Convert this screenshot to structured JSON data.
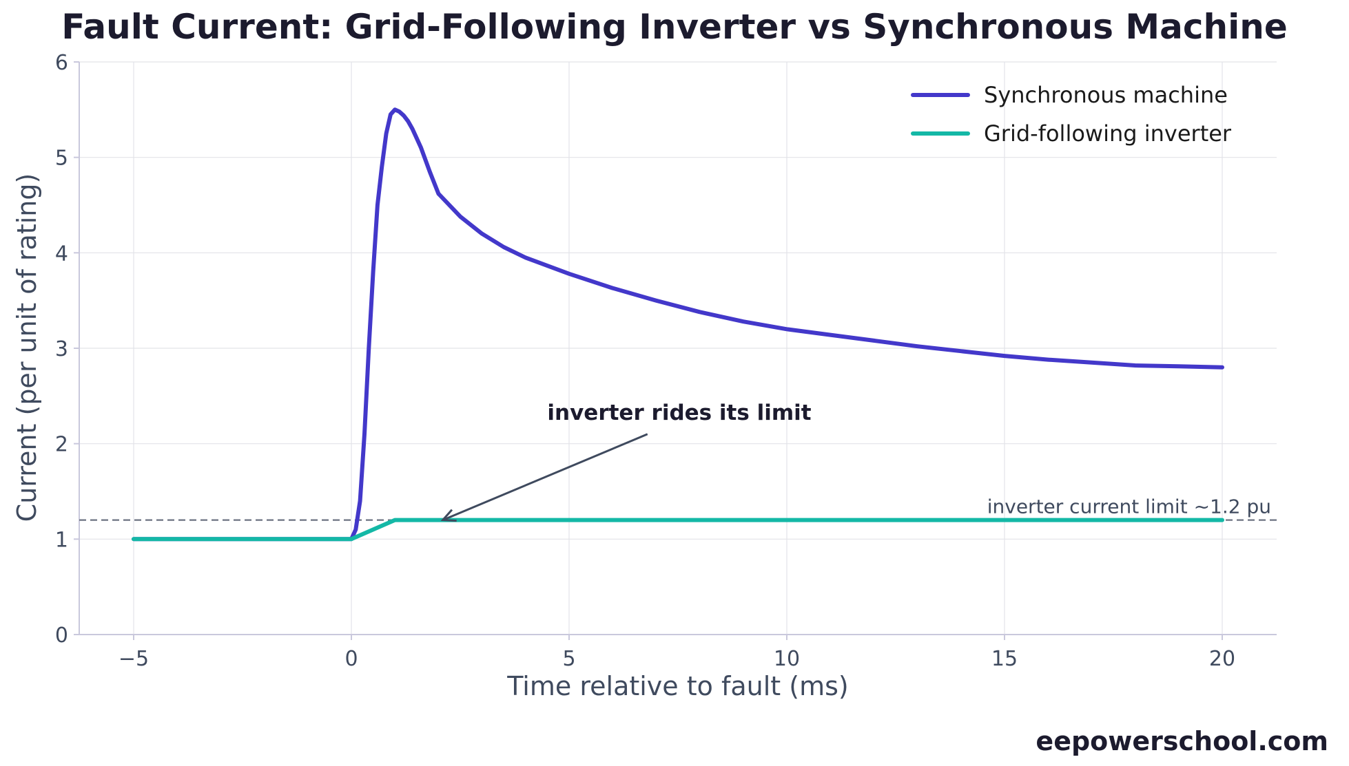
{
  "chart_data": {
    "type": "line",
    "title": "Fault Current: Grid-Following Inverter vs Synchronous Machine",
    "xlabel": "Time relative to fault (ms)",
    "ylabel": "Current (per unit of rating)",
    "xlim": [
      -6.25,
      21.25
    ],
    "ylim": [
      0,
      6
    ],
    "xticks": [
      -5,
      0,
      5,
      10,
      15,
      20
    ],
    "xtick_labels": [
      "−5",
      "0",
      "5",
      "10",
      "15",
      "20"
    ],
    "yticks": [
      0,
      1,
      2,
      3,
      4,
      5,
      6
    ],
    "ytick_labels": [
      "0",
      "1",
      "2",
      "3",
      "4",
      "5",
      "6"
    ],
    "grid": true,
    "legend_position": "top-right",
    "series": [
      {
        "name": "Synchronous machine",
        "color": "#4338ca",
        "x": [
          -5,
          0,
          0.1,
          0.2,
          0.3,
          0.4,
          0.5,
          0.6,
          0.7,
          0.8,
          0.9,
          1.0,
          1.1,
          1.2,
          1.3,
          1.4,
          1.5,
          1.6,
          1.8,
          2.0,
          2.5,
          3.0,
          3.5,
          4.0,
          5.0,
          6.0,
          7.0,
          8.0,
          9.0,
          10.0,
          11.0,
          12.0,
          13.0,
          14.0,
          15.0,
          16.0,
          17.0,
          18.0,
          19.0,
          20.0
        ],
        "y": [
          1.0,
          1.0,
          1.1,
          1.4,
          2.1,
          3.0,
          3.8,
          4.5,
          4.9,
          5.25,
          5.45,
          5.5,
          5.48,
          5.44,
          5.38,
          5.3,
          5.2,
          5.1,
          4.85,
          4.62,
          4.38,
          4.2,
          4.06,
          3.95,
          3.78,
          3.63,
          3.5,
          3.38,
          3.28,
          3.2,
          3.14,
          3.08,
          3.02,
          2.97,
          2.92,
          2.88,
          2.85,
          2.82,
          2.81,
          2.8
        ]
      },
      {
        "name": "Grid-following inverter",
        "color": "#14b8a6",
        "x": [
          -5,
          0,
          1.0,
          20
        ],
        "y": [
          1.0,
          1.0,
          1.2,
          1.2
        ]
      }
    ],
    "reference_line": {
      "y": 1.2,
      "label": "inverter current limit ~1.2 pu",
      "color": "#6b7280",
      "style": "dashed"
    },
    "annotation": {
      "text": "inverter rides its limit",
      "text_x": 4.5,
      "text_y": 2.25,
      "arrow_from": [
        6.8,
        2.1
      ],
      "arrow_to": [
        2.1,
        1.2
      ]
    }
  },
  "footer": {
    "watermark": "eepowerschool.com"
  },
  "colors": {
    "grid": "#e2e3e8",
    "axis": "#c9c8dc",
    "annotation_arrow": "#3f4a5e"
  }
}
